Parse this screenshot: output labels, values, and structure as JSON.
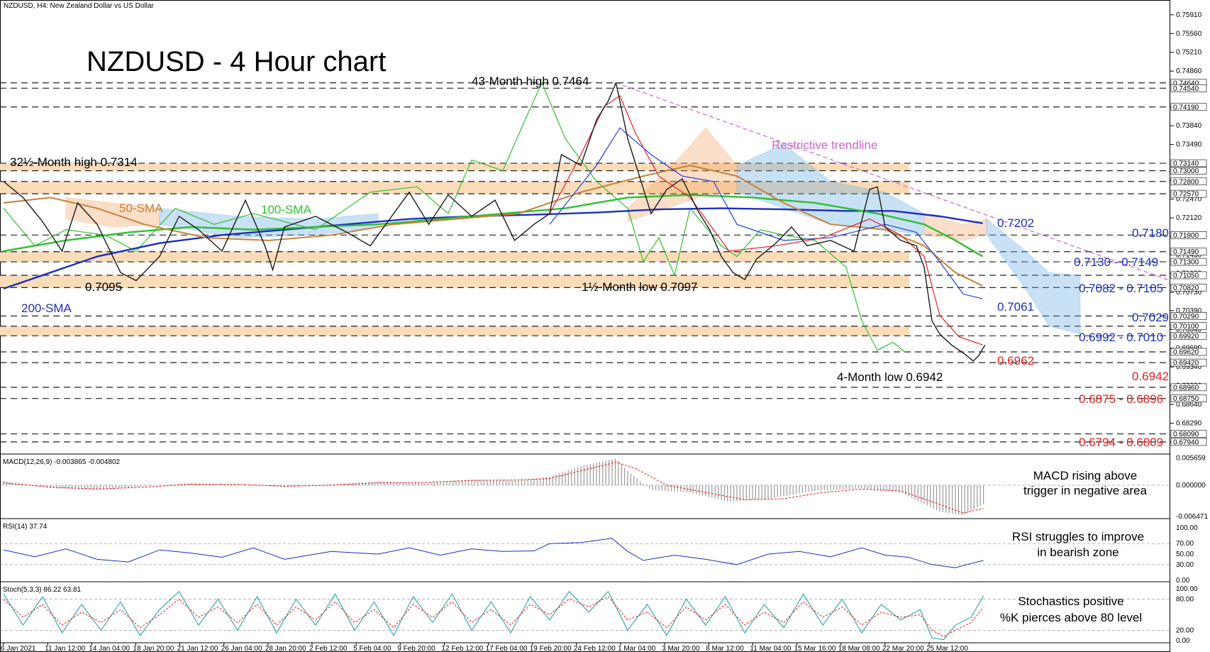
{
  "header": {
    "symbol_info": "NZDUSD, H4:  New Zealand Dollar vs US Dollar",
    "big_title": "NZDUSD - 4 Hour chart"
  },
  "colors": {
    "price": "#1a1a1a",
    "sma50": "#c8813a",
    "sma100": "#2fbf2f",
    "sma200": "#1a2fbf",
    "tenkan": "#e02020",
    "kijun": "#2040e0",
    "chikou": "#30c030",
    "cloud_bear": "#f0a060",
    "cloud_bull": "#60a8e0",
    "zone": "#fbdcb8",
    "trendline": "#cc66cc",
    "support_text": "#e02020",
    "resistance_text": "#1a2fbf"
  },
  "labels": {
    "high_43m": "43-Month high 0.7464",
    "high_32m": "32½-Month high 0.7314",
    "low_095": "0.7095",
    "low_1half": "1½-Month low 0.7097",
    "low_4m": "4-Month low 0.6942",
    "sma50": "50-SMA",
    "sma100": "100-SMA",
    "sma200": "200-SMA",
    "trendline": "Restrictive trendline",
    "macd_note_1": "MACD rising above",
    "macd_note_2": "trigger in negative area",
    "rsi_note_1": "RSI struggles to improve",
    "rsi_note_2": "in bearish zone",
    "stoch_note_1": "Stochastics positive",
    "stoch_note_2": "%K pierces above 80 level"
  },
  "levels": {
    "r_7202": "0.7202",
    "r_7180": "0.7180",
    "r_7130": "0.7130 - 0.7149",
    "r_7082": "0.7082 - 0.7105",
    "r_7061": "0.7061",
    "r_7029": "0.7029",
    "r_6992": "0.6992 - 0.7010",
    "s_6962": "0.6962",
    "s_6942": "0.6942",
    "s_6875": "0.6875 - 0.6896",
    "s_6794": "0.6794 - 0.6809"
  },
  "price_axis_ticks": [
    "0.75910",
    "0.75560",
    "0.75210",
    "0.74860",
    "0.74190",
    "0.73840",
    "0.73490",
    "0.72820",
    "0.72470",
    "0.72120",
    "0.71770",
    "0.71430",
    "0.71080",
    "0.70730",
    "0.70390",
    "0.70040",
    "0.69690",
    "0.69340",
    "0.68990",
    "0.68640",
    "0.68290",
    "0.67940"
  ],
  "price_tags": [
    "0.74640",
    "0.74540",
    "0.74190",
    "0.73140",
    "0.73000",
    "0.72800",
    "0.72570",
    "0.71800",
    "0.71490",
    "0.71300",
    "0.71050",
    "0.70820",
    "0.70290",
    "0.70100",
    "0.69920",
    "0.69620",
    "0.69420",
    "0.68960",
    "0.68750",
    "0.68090",
    "0.67940"
  ],
  "indicators": {
    "macd_title": "MACD(12,26,9) -0.003865 -0.004802",
    "macd_ticks": [
      "0.005659",
      "0.000000",
      "-0.006471"
    ],
    "rsi_title": "RSI(14) 37.74",
    "rsi_ticks": [
      "100.00",
      "70.00",
      "50.00",
      "30.00",
      "0.00"
    ],
    "stoch_title": "Stoch(5,3,3) 86.22 63.81",
    "stoch_ticks": [
      "100.00",
      "80.00",
      "20.00",
      "0.00"
    ]
  },
  "chart_data": {
    "type": "line",
    "title": "NZDUSD - 4 Hour chart",
    "x_ticks": [
      "6 Jan 2021",
      "11 Jan 12:00",
      "14 Jan 04:00",
      "18 Jan 20:00",
      "21 Jan 12:00",
      "26 Jan 04:00",
      "28 Jan 20:00",
      "2 Feb 12:00",
      "5 Feb 04:00",
      "9 Feb 20:00",
      "12 Feb 12:00",
      "17 Feb 04:00",
      "19 Feb 20:00",
      "24 Feb 12:00",
      "1 Mar 04:00",
      "3 Mar 20:00",
      "8 Mar 12:00",
      "11 Mar 04:00",
      "15 Mar 16:00",
      "18 Mar 08:00",
      "22 Mar 20:00",
      "25 Mar 12:00"
    ],
    "ylim": [
      0.6774,
      0.7608
    ],
    "price_path": [
      [
        0,
        0.728
      ],
      [
        25,
        0.725
      ],
      [
        50,
        0.7205
      ],
      [
        75,
        0.715
      ],
      [
        95,
        0.724
      ],
      [
        120,
        0.72
      ],
      [
        150,
        0.711
      ],
      [
        170,
        0.7095
      ],
      [
        200,
        0.714
      ],
      [
        225,
        0.7215
      ],
      [
        250,
        0.719
      ],
      [
        280,
        0.715
      ],
      [
        310,
        0.7245
      ],
      [
        335,
        0.716
      ],
      [
        345,
        0.7115
      ],
      [
        360,
        0.7195
      ],
      [
        400,
        0.7215
      ],
      [
        440,
        0.7185
      ],
      [
        470,
        0.716
      ],
      [
        500,
        0.722
      ],
      [
        520,
        0.726
      ],
      [
        545,
        0.72
      ],
      [
        570,
        0.7255
      ],
      [
        600,
        0.7215
      ],
      [
        630,
        0.7245
      ],
      [
        655,
        0.717
      ],
      [
        680,
        0.72
      ],
      [
        700,
        0.722
      ],
      [
        715,
        0.733
      ],
      [
        740,
        0.731
      ],
      [
        760,
        0.7395
      ],
      [
        775,
        0.743
      ],
      [
        785,
        0.7464
      ],
      [
        800,
        0.736
      ],
      [
        815,
        0.729
      ],
      [
        830,
        0.722
      ],
      [
        850,
        0.7265
      ],
      [
        870,
        0.7285
      ],
      [
        890,
        0.7225
      ],
      [
        905,
        0.719
      ],
      [
        920,
        0.714
      ],
      [
        935,
        0.711
      ],
      [
        950,
        0.7097
      ],
      [
        965,
        0.7135
      ],
      [
        990,
        0.7165
      ],
      [
        1010,
        0.7195
      ],
      [
        1030,
        0.716
      ],
      [
        1060,
        0.717
      ],
      [
        1090,
        0.715
      ],
      [
        1110,
        0.7265
      ],
      [
        1120,
        0.727
      ],
      [
        1130,
        0.7195
      ],
      [
        1150,
        0.717
      ],
      [
        1170,
        0.716
      ],
      [
        1180,
        0.712
      ],
      [
        1190,
        0.702
      ],
      [
        1200,
        0.6995
      ],
      [
        1215,
        0.6975
      ],
      [
        1230,
        0.696
      ],
      [
        1243,
        0.6945
      ],
      [
        1250,
        0.6955
      ],
      [
        1258,
        0.6975
      ]
    ],
    "sma50_path": [
      [
        0,
        0.724
      ],
      [
        60,
        0.725
      ],
      [
        120,
        0.723
      ],
      [
        180,
        0.72
      ],
      [
        260,
        0.7175
      ],
      [
        340,
        0.717
      ],
      [
        420,
        0.718
      ],
      [
        500,
        0.72
      ],
      [
        580,
        0.721
      ],
      [
        660,
        0.722
      ],
      [
        740,
        0.726
      ],
      [
        820,
        0.729
      ],
      [
        880,
        0.731
      ],
      [
        940,
        0.729
      ],
      [
        1000,
        0.724
      ],
      [
        1060,
        0.72
      ],
      [
        1130,
        0.719
      ],
      [
        1180,
        0.716
      ],
      [
        1220,
        0.711
      ],
      [
        1255,
        0.7085
      ]
    ],
    "sma100_path": [
      [
        0,
        0.715
      ],
      [
        80,
        0.717
      ],
      [
        160,
        0.7185
      ],
      [
        240,
        0.7195
      ],
      [
        320,
        0.719
      ],
      [
        400,
        0.7195
      ],
      [
        480,
        0.72
      ],
      [
        560,
        0.721
      ],
      [
        640,
        0.722
      ],
      [
        720,
        0.723
      ],
      [
        800,
        0.725
      ],
      [
        880,
        0.7255
      ],
      [
        960,
        0.725
      ],
      [
        1040,
        0.724
      ],
      [
        1120,
        0.722
      ],
      [
        1180,
        0.72
      ],
      [
        1220,
        0.717
      ],
      [
        1255,
        0.714
      ]
    ],
    "sma200_path": [
      [
        0,
        0.708
      ],
      [
        60,
        0.711
      ],
      [
        120,
        0.714
      ],
      [
        200,
        0.7165
      ],
      [
        280,
        0.718
      ],
      [
        360,
        0.719
      ],
      [
        440,
        0.72
      ],
      [
        520,
        0.721
      ],
      [
        600,
        0.7215
      ],
      [
        680,
        0.7218
      ],
      [
        760,
        0.7222
      ],
      [
        840,
        0.7228
      ],
      [
        920,
        0.723
      ],
      [
        1000,
        0.7228
      ],
      [
        1080,
        0.7225
      ],
      [
        1140,
        0.7225
      ],
      [
        1200,
        0.7215
      ],
      [
        1255,
        0.7202
      ]
    ],
    "tenkan_path": [
      [
        700,
        0.722
      ],
      [
        740,
        0.733
      ],
      [
        770,
        0.742
      ],
      [
        790,
        0.744
      ],
      [
        810,
        0.737
      ],
      [
        840,
        0.729
      ],
      [
        880,
        0.725
      ],
      [
        930,
        0.715
      ],
      [
        990,
        0.716
      ],
      [
        1050,
        0.7175
      ],
      [
        1110,
        0.721
      ],
      [
        1150,
        0.718
      ],
      [
        1180,
        0.714
      ],
      [
        1200,
        0.703
      ],
      [
        1225,
        0.699
      ],
      [
        1255,
        0.6975
      ]
    ],
    "kijun_path": [
      [
        700,
        0.72
      ],
      [
        760,
        0.731
      ],
      [
        790,
        0.738
      ],
      [
        830,
        0.733
      ],
      [
        870,
        0.729
      ],
      [
        910,
        0.728
      ],
      [
        940,
        0.72
      ],
      [
        1000,
        0.717
      ],
      [
        1060,
        0.7175
      ],
      [
        1130,
        0.72
      ],
      [
        1170,
        0.7185
      ],
      [
        1200,
        0.713
      ],
      [
        1230,
        0.707
      ],
      [
        1255,
        0.7061
      ]
    ],
    "chikou_path": [
      [
        0,
        0.723
      ],
      [
        40,
        0.716
      ],
      [
        80,
        0.719
      ],
      [
        130,
        0.718
      ],
      [
        170,
        0.715
      ],
      [
        220,
        0.723
      ],
      [
        270,
        0.72
      ],
      [
        320,
        0.722
      ],
      [
        400,
        0.719
      ],
      [
        470,
        0.726
      ],
      [
        530,
        0.727
      ],
      [
        570,
        0.722
      ],
      [
        600,
        0.732
      ],
      [
        640,
        0.73
      ],
      [
        670,
        0.74
      ],
      [
        690,
        0.7464
      ],
      [
        720,
        0.736
      ],
      [
        760,
        0.728
      ],
      [
        800,
        0.723
      ],
      [
        820,
        0.713
      ],
      [
        840,
        0.7175
      ],
      [
        860,
        0.7105
      ],
      [
        880,
        0.723
      ],
      [
        900,
        0.7195
      ],
      [
        920,
        0.716
      ],
      [
        940,
        0.714
      ],
      [
        970,
        0.719
      ],
      [
        1000,
        0.718
      ],
      [
        1040,
        0.717
      ],
      [
        1080,
        0.712
      ],
      [
        1100,
        0.702
      ],
      [
        1120,
        0.6965
      ],
      [
        1140,
        0.698
      ],
      [
        1155,
        0.6962
      ]
    ],
    "macd_hist": [
      [
        0,
        0.0009
      ],
      [
        60,
        -0.0006
      ],
      [
        120,
        -0.001
      ],
      [
        180,
        -0.0002
      ],
      [
        240,
        0.0004
      ],
      [
        300,
        0.0001
      ],
      [
        360,
        -0.0004
      ],
      [
        420,
        0.0002
      ],
      [
        480,
        0.0008
      ],
      [
        540,
        0.0005
      ],
      [
        600,
        0.0012
      ],
      [
        660,
        0.001
      ],
      [
        700,
        0.0018
      ],
      [
        740,
        0.004
      ],
      [
        785,
        0.0056
      ],
      [
        800,
        0.003
      ],
      [
        830,
        -0.001
      ],
      [
        880,
        -0.0015
      ],
      [
        930,
        -0.0035
      ],
      [
        980,
        -0.0028
      ],
      [
        1040,
        -0.0012
      ],
      [
        1100,
        -0.0006
      ],
      [
        1150,
        -0.0015
      ],
      [
        1200,
        -0.0055
      ],
      [
        1230,
        -0.0063
      ],
      [
        1256,
        -0.0039
      ]
    ],
    "macd_signal": [
      [
        0,
        0.0005
      ],
      [
        60,
        -0.0004
      ],
      [
        120,
        -0.0008
      ],
      [
        180,
        -0.0004
      ],
      [
        240,
        0.0002
      ],
      [
        300,
        0.0002
      ],
      [
        360,
        -0.0002
      ],
      [
        420,
        0.0
      ],
      [
        480,
        0.0005
      ],
      [
        540,
        0.0006
      ],
      [
        600,
        0.001
      ],
      [
        660,
        0.0011
      ],
      [
        700,
        0.0014
      ],
      [
        740,
        0.003
      ],
      [
        785,
        0.0048
      ],
      [
        810,
        0.0035
      ],
      [
        850,
        0.0
      ],
      [
        900,
        -0.0015
      ],
      [
        950,
        -0.003
      ],
      [
        1000,
        -0.0028
      ],
      [
        1050,
        -0.0015
      ],
      [
        1100,
        -0.0008
      ],
      [
        1150,
        -0.0012
      ],
      [
        1200,
        -0.004
      ],
      [
        1230,
        -0.0058
      ],
      [
        1256,
        -0.0048
      ]
    ],
    "rsi_path": [
      [
        0,
        58
      ],
      [
        40,
        45
      ],
      [
        80,
        60
      ],
      [
        120,
        40
      ],
      [
        160,
        35
      ],
      [
        200,
        58
      ],
      [
        240,
        52
      ],
      [
        280,
        44
      ],
      [
        320,
        62
      ],
      [
        360,
        40
      ],
      [
        420,
        55
      ],
      [
        480,
        50
      ],
      [
        520,
        62
      ],
      [
        560,
        48
      ],
      [
        600,
        60
      ],
      [
        640,
        55
      ],
      [
        680,
        56
      ],
      [
        700,
        70
      ],
      [
        740,
        72
      ],
      [
        780,
        80
      ],
      [
        800,
        55
      ],
      [
        820,
        38
      ],
      [
        860,
        48
      ],
      [
        900,
        40
      ],
      [
        940,
        30
      ],
      [
        980,
        50
      ],
      [
        1020,
        55
      ],
      [
        1060,
        45
      ],
      [
        1100,
        62
      ],
      [
        1130,
        48
      ],
      [
        1160,
        44
      ],
      [
        1190,
        30
      ],
      [
        1220,
        24
      ],
      [
        1240,
        32
      ],
      [
        1256,
        38
      ]
    ],
    "stoch_k": [
      [
        0,
        90
      ],
      [
        25,
        30
      ],
      [
        50,
        85
      ],
      [
        75,
        15
      ],
      [
        100,
        70
      ],
      [
        125,
        20
      ],
      [
        150,
        75
      ],
      [
        175,
        10
      ],
      [
        200,
        60
      ],
      [
        225,
        95
      ],
      [
        250,
        30
      ],
      [
        275,
        80
      ],
      [
        300,
        20
      ],
      [
        325,
        85
      ],
      [
        350,
        15
      ],
      [
        375,
        80
      ],
      [
        400,
        30
      ],
      [
        425,
        90
      ],
      [
        450,
        20
      ],
      [
        475,
        75
      ],
      [
        500,
        10
      ],
      [
        525,
        85
      ],
      [
        550,
        35
      ],
      [
        575,
        90
      ],
      [
        600,
        20
      ],
      [
        625,
        75
      ],
      [
        650,
        15
      ],
      [
        675,
        85
      ],
      [
        700,
        40
      ],
      [
        725,
        95
      ],
      [
        750,
        55
      ],
      [
        775,
        95
      ],
      [
        800,
        20
      ],
      [
        825,
        70
      ],
      [
        850,
        10
      ],
      [
        875,
        80
      ],
      [
        900,
        30
      ],
      [
        925,
        85
      ],
      [
        950,
        15
      ],
      [
        975,
        70
      ],
      [
        1000,
        25
      ],
      [
        1025,
        90
      ],
      [
        1050,
        30
      ],
      [
        1075,
        80
      ],
      [
        1100,
        15
      ],
      [
        1125,
        70
      ],
      [
        1150,
        40
      ],
      [
        1175,
        60
      ],
      [
        1190,
        5
      ],
      [
        1205,
        2
      ],
      [
        1220,
        30
      ],
      [
        1240,
        45
      ],
      [
        1256,
        86
      ]
    ],
    "stoch_d": [
      [
        0,
        80
      ],
      [
        25,
        45
      ],
      [
        50,
        70
      ],
      [
        75,
        30
      ],
      [
        100,
        55
      ],
      [
        125,
        35
      ],
      [
        150,
        60
      ],
      [
        175,
        25
      ],
      [
        200,
        50
      ],
      [
        225,
        80
      ],
      [
        250,
        45
      ],
      [
        275,
        65
      ],
      [
        300,
        35
      ],
      [
        325,
        70
      ],
      [
        350,
        30
      ],
      [
        375,
        65
      ],
      [
        400,
        40
      ],
      [
        425,
        75
      ],
      [
        450,
        35
      ],
      [
        475,
        60
      ],
      [
        500,
        25
      ],
      [
        525,
        70
      ],
      [
        550,
        45
      ],
      [
        575,
        75
      ],
      [
        600,
        35
      ],
      [
        625,
        60
      ],
      [
        650,
        30
      ],
      [
        675,
        70
      ],
      [
        700,
        50
      ],
      [
        725,
        80
      ],
      [
        750,
        65
      ],
      [
        775,
        85
      ],
      [
        800,
        40
      ],
      [
        825,
        55
      ],
      [
        850,
        25
      ],
      [
        875,
        65
      ],
      [
        900,
        40
      ],
      [
        925,
        70
      ],
      [
        950,
        30
      ],
      [
        975,
        55
      ],
      [
        1000,
        35
      ],
      [
        1025,
        75
      ],
      [
        1050,
        45
      ],
      [
        1075,
        65
      ],
      [
        1100,
        30
      ],
      [
        1125,
        55
      ],
      [
        1150,
        45
      ],
      [
        1175,
        50
      ],
      [
        1190,
        20
      ],
      [
        1205,
        8
      ],
      [
        1220,
        20
      ],
      [
        1240,
        35
      ],
      [
        1256,
        64
      ]
    ]
  }
}
